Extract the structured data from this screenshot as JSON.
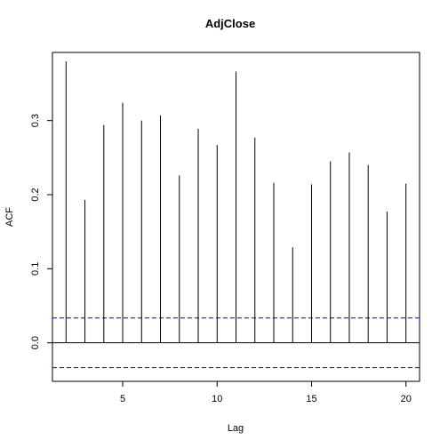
{
  "chart_data": {
    "type": "bar",
    "title": "AdjClose",
    "xlabel": "Lag",
    "ylabel": "ACF",
    "xlim": [
      1.28,
      20.72
    ],
    "ylim": [
      -0.052,
      0.392
    ],
    "xticks": [
      5,
      10,
      15,
      20
    ],
    "yticks": [
      0.0,
      0.1,
      0.2,
      0.3
    ],
    "xtick_labels": [
      "5",
      "10",
      "15",
      "20"
    ],
    "ytick_labels": [
      "0.0",
      "0.1",
      "0.2",
      "0.3"
    ],
    "lags": [
      2,
      3,
      4,
      5,
      6,
      7,
      8,
      9,
      10,
      11,
      12,
      13,
      14,
      15,
      16,
      17,
      18,
      19,
      20
    ],
    "values": [
      0.38,
      0.193,
      0.294,
      0.324,
      0.3,
      0.307,
      0.226,
      0.289,
      0.267,
      0.366,
      0.277,
      0.216,
      0.129,
      0.214,
      0.245,
      0.257,
      0.24,
      0.177,
      0.215
    ],
    "confidence_bound": 0.0335,
    "zero_line": true,
    "grid": false,
    "colors": {
      "bars": "#000000",
      "confidence": "#0000cc",
      "zero": "#000000",
      "frame": "#000000"
    }
  }
}
